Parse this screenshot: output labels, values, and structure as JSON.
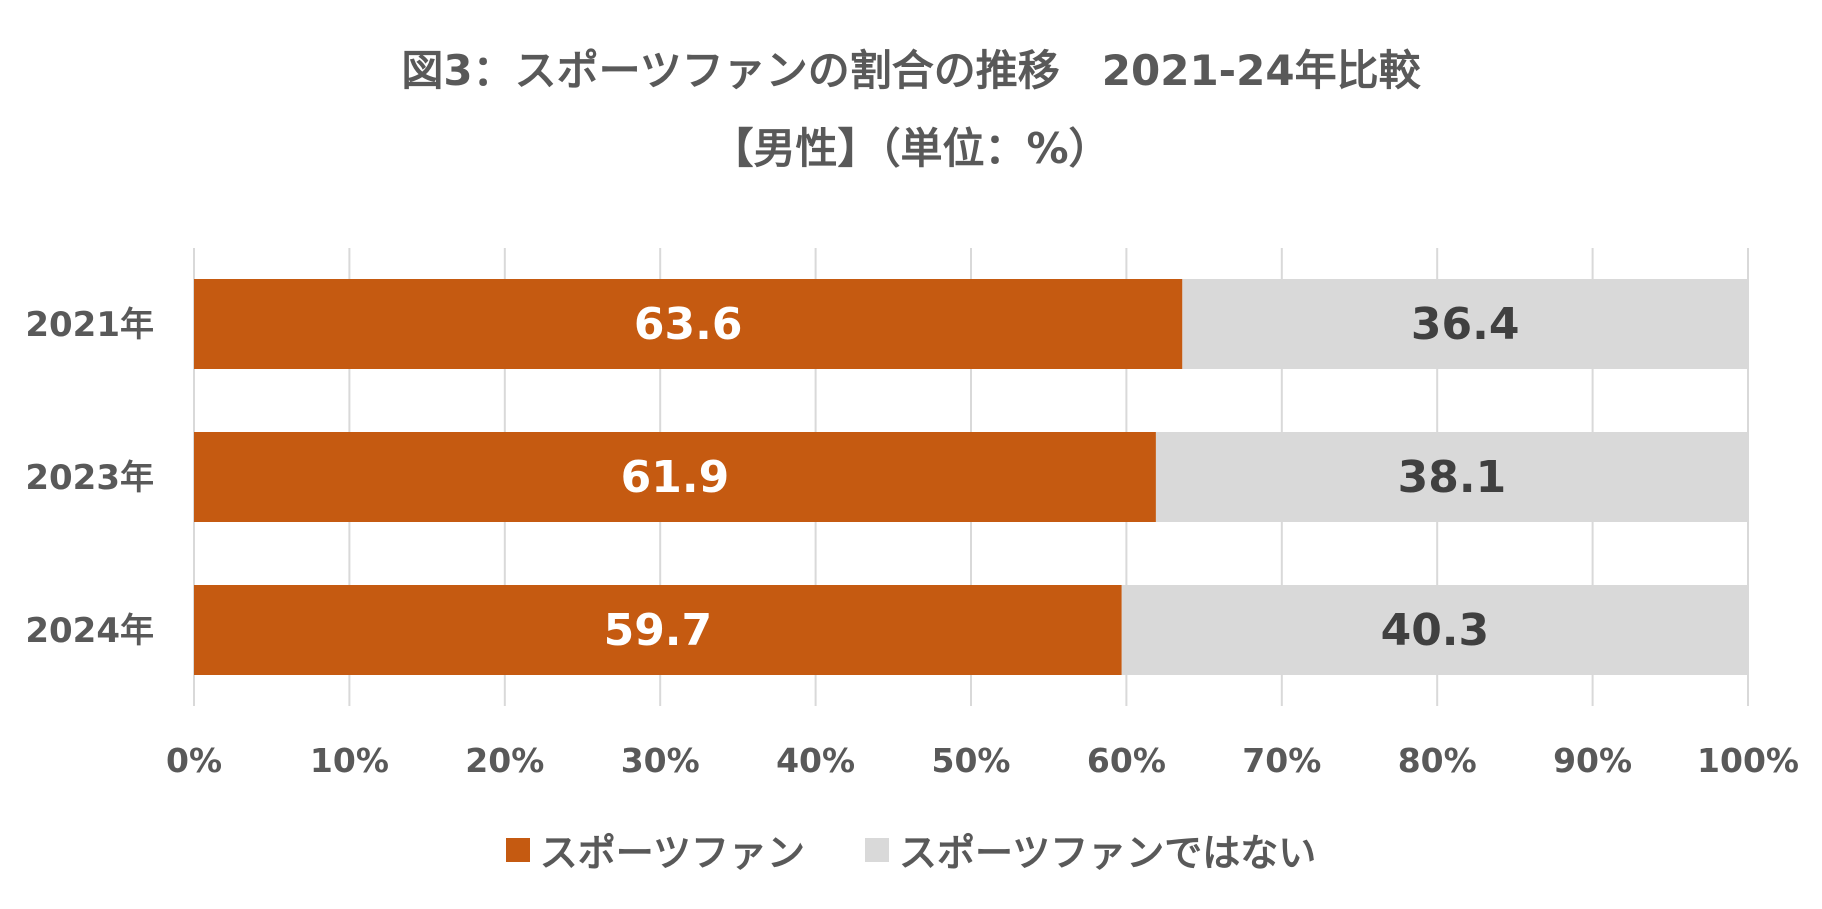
{
  "chart_data": {
    "type": "bar",
    "orientation": "horizontal",
    "stacked": "percent",
    "title": "図3：スポーツファンの割合の推移　2021-24年比較",
    "subtitle": "【男性】（単位：%）",
    "categories": [
      "2021年",
      "2023年",
      "2024年"
    ],
    "series": [
      {
        "name": "スポーツファン",
        "values": [
          63.6,
          61.9,
          59.7
        ],
        "color": "#C55A11",
        "label_color": "#FFFFFF"
      },
      {
        "name": "スポーツファンではない",
        "values": [
          36.4,
          38.1,
          40.3
        ],
        "color": "#D9D9D9",
        "label_color": "#404040"
      }
    ],
    "data_labels": [
      [
        "63.6",
        "61.9",
        "59.7"
      ],
      [
        "36.4",
        "38.1",
        "40.3"
      ]
    ],
    "xlim": [
      0,
      100
    ],
    "x_ticks": [
      "0%",
      "10%",
      "20%",
      "30%",
      "40%",
      "50%",
      "60%",
      "70%",
      "80%",
      "90%",
      "100%"
    ],
    "grid": "vertical",
    "legend_position": "bottom"
  }
}
